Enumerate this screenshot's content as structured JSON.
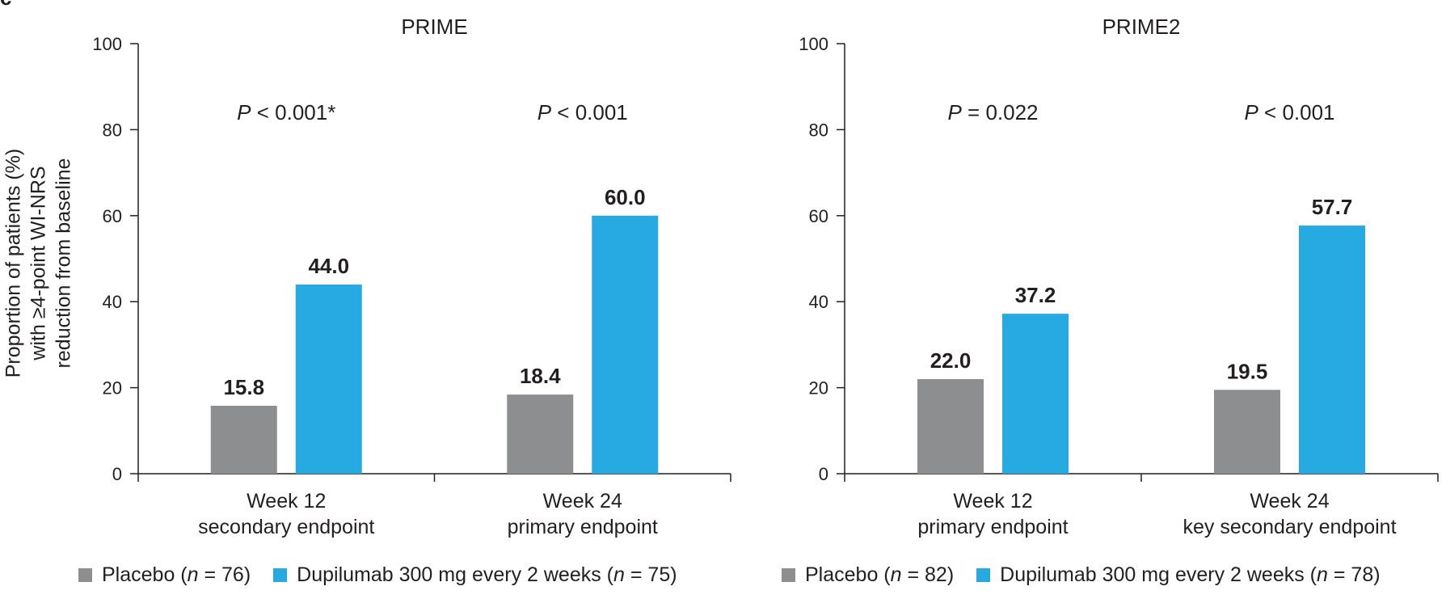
{
  "panel_letter": "c",
  "colors": {
    "placebo": "#8d8e90",
    "dupilumab": "#27aae1",
    "axis": "#231f20",
    "text": "#231f20"
  },
  "y_axis_title": [
    "Proportion of patients (%)",
    "with ≥4-point WI-NRS",
    "reduction from baseline"
  ],
  "legends": [
    {
      "placebo_label": "Placebo (",
      "placebo_n": "n",
      "placebo_count": " = 76)",
      "dupilumab_label": "Dupilumab 300 mg every 2 weeks (",
      "dupilumab_n": "n",
      "dupilumab_count": " = 75)"
    },
    {
      "placebo_label": "Placebo (",
      "placebo_n": "n",
      "placebo_count": " = 82)",
      "dupilumab_label": "Dupilumab 300 mg every 2 weeks (",
      "dupilumab_n": "n",
      "dupilumab_count": " = 78)"
    }
  ],
  "chart_data": [
    {
      "type": "bar",
      "title": "PRIME",
      "categories": [
        [
          "Week 12",
          "secondary endpoint"
        ],
        [
          "Week 24",
          "primary endpoint"
        ]
      ],
      "series": [
        {
          "name": "Placebo",
          "values": [
            15.8,
            18.4
          ],
          "labels": [
            "15.8",
            "18.4"
          ]
        },
        {
          "name": "Dupilumab 300 mg every 2 weeks",
          "values": [
            44.0,
            60.0
          ],
          "labels": [
            "44.0",
            "60.0"
          ]
        }
      ],
      "p_values": [
        {
          "italic": "P",
          "rest": " < 0.001*"
        },
        {
          "italic": "P",
          "rest": " < 0.001"
        }
      ],
      "ylim": [
        0,
        100
      ],
      "yticks": [
        0,
        20,
        40,
        60,
        80,
        100
      ],
      "ytick_labels": [
        "0",
        "20",
        "40",
        "60",
        "80",
        "100"
      ],
      "ylabel": "Proportion of patients (%) with ≥4-point WI-NRS reduction from baseline",
      "xlabel": ""
    },
    {
      "type": "bar",
      "title": "PRIME2",
      "categories": [
        [
          "Week 12",
          "primary endpoint"
        ],
        [
          "Week 24",
          "key secondary endpoint"
        ]
      ],
      "series": [
        {
          "name": "Placebo",
          "values": [
            22.0,
            19.5
          ],
          "labels": [
            "22.0",
            "19.5"
          ]
        },
        {
          "name": "Dupilumab 300 mg every 2 weeks",
          "values": [
            37.2,
            57.7
          ],
          "labels": [
            "37.2",
            "57.7"
          ]
        }
      ],
      "p_values": [
        {
          "italic": "P",
          "rest": " = 0.022"
        },
        {
          "italic": "P",
          "rest": " < 0.001"
        }
      ],
      "ylim": [
        0,
        100
      ],
      "yticks": [
        0,
        20,
        40,
        60,
        80,
        100
      ],
      "ytick_labels": [
        "0",
        "20",
        "40",
        "60",
        "80",
        "100"
      ],
      "ylabel": "",
      "xlabel": ""
    }
  ]
}
